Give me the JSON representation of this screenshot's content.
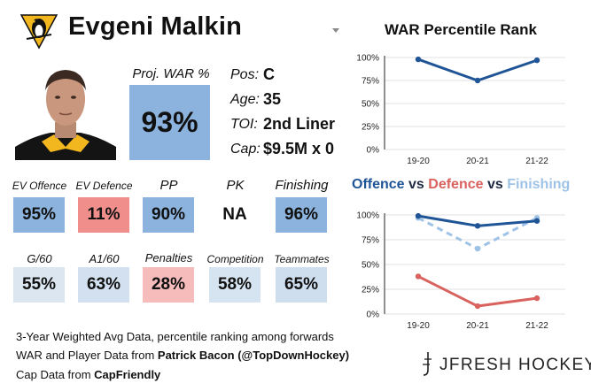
{
  "player": {
    "name": "Evgeni Malkin",
    "team_logo_icon": "penguin-logo-icon",
    "headshot_icon": "player-headshot-icon"
  },
  "proj_war": {
    "label": "Proj. WAR %",
    "value": "93%"
  },
  "info": [
    {
      "key": "Pos:",
      "value": "C"
    },
    {
      "key": "Age:",
      "value": "35"
    },
    {
      "key": "TOI:",
      "value": "2nd Liner"
    },
    {
      "key": "Cap:",
      "value": "$9.5M x 0"
    }
  ],
  "tiles_row1": [
    {
      "label": "EV Offence",
      "value": "95%",
      "color": "#8bb3de"
    },
    {
      "label": "EV Defence",
      "value": "11%",
      "color": "#f08e8c"
    },
    {
      "label": "PP",
      "value": "90%",
      "color": "#8bb3de"
    },
    {
      "label": "PK",
      "value": "NA",
      "color": "#ffffff"
    },
    {
      "label": "Finishing",
      "value": "96%",
      "color": "#8bb3de"
    }
  ],
  "tiles_row2": [
    {
      "label": "G/60",
      "value": "55%",
      "color": "#dbe6f1"
    },
    {
      "label": "A1/60",
      "value": "63%",
      "color": "#d2e0ef"
    },
    {
      "label": "Penalties",
      "value": "28%",
      "color": "#f5bcbb"
    },
    {
      "label": "Competition",
      "value": "58%",
      "color": "#d6e3f0"
    },
    {
      "label": "Teammates",
      "value": "65%",
      "color": "#cfdeee"
    }
  ],
  "footer": {
    "line1": "3-Year Weighted Avg Data, percentile ranking among forwards",
    "line2_prefix": "WAR and Player Data from ",
    "line2_bold": "Patrick Bacon (@TopDownHockey)",
    "line3_prefix": "Cap Data from ",
    "line3_bold": "CapFriendly"
  },
  "brand": {
    "name": "JFRESH HOCKEY",
    "logo_icon": "jfresh-logo-icon"
  },
  "colors": {
    "offence": "#1f5596",
    "defence": "#d9615e",
    "finishing": "#9fc3e7"
  },
  "chart_data": [
    {
      "type": "line",
      "title": "WAR Percentile Rank",
      "categories": [
        "19-20",
        "20-21",
        "21-22"
      ],
      "yticks": [
        "0%",
        "25%",
        "50%",
        "75%",
        "100%"
      ],
      "ylim": [
        0,
        100
      ],
      "series": [
        {
          "name": "WAR",
          "values": [
            98,
            75,
            97
          ],
          "color": "#1f5596",
          "dashed": false
        }
      ]
    },
    {
      "type": "line",
      "title_parts": [
        {
          "text": "Offence",
          "color": "#1f5596"
        },
        {
          "text": " vs ",
          "color": "#1f2a44"
        },
        {
          "text": "Defence",
          "color": "#d9615e"
        },
        {
          "text": " vs ",
          "color": "#1f2a44"
        },
        {
          "text": "Finishing",
          "color": "#9fc3e7"
        }
      ],
      "categories": [
        "19-20",
        "20-21",
        "21-22"
      ],
      "yticks": [
        "0%",
        "25%",
        "50%",
        "75%",
        "100%"
      ],
      "ylim": [
        0,
        100
      ],
      "series": [
        {
          "name": "Finishing",
          "values": [
            97,
            66,
            97
          ],
          "color": "#9fc3e7",
          "dashed": true
        },
        {
          "name": "Offence",
          "values": [
            99,
            89,
            94
          ],
          "color": "#1f5596",
          "dashed": false
        },
        {
          "name": "Defence",
          "values": [
            38,
            8,
            16
          ],
          "color": "#d9615e",
          "dashed": false
        }
      ]
    }
  ]
}
